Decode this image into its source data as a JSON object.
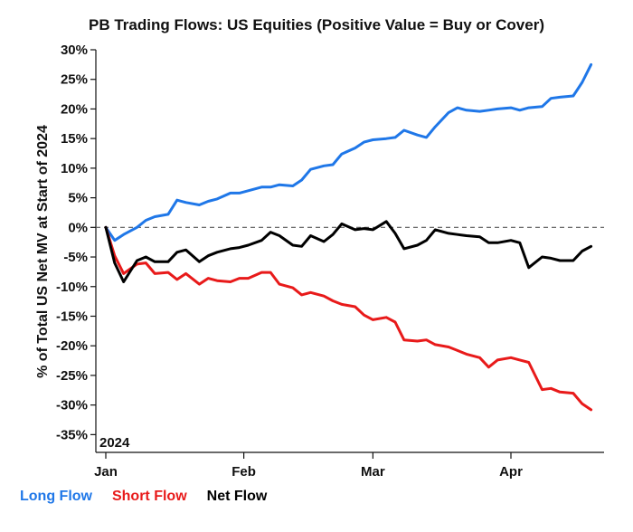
{
  "chart_data": {
    "type": "line",
    "title": "PB Trading Flows: US Equities (Positive Value = Buy or Cover)",
    "ylabel": "% of Total US Net MV at Start of 2024",
    "xlabel": "",
    "inset_label": "2024",
    "ylim": [
      -38,
      30
    ],
    "yticks": [
      30,
      25,
      20,
      15,
      10,
      5,
      0,
      -5,
      -10,
      -15,
      -20,
      -25,
      -30,
      -35
    ],
    "ytick_labels": [
      "30%",
      "25%",
      "20%",
      "15%",
      "10%",
      "5%",
      "0%",
      "-5%",
      "-10%",
      "-15%",
      "-20%",
      "-25%",
      "-30%",
      "-35%"
    ],
    "x_axis": {
      "start": "2024-01-01",
      "end": "2024-04-30",
      "units": "date"
    },
    "xticks": [
      "2024-01-01",
      "2024-02-01",
      "2024-03-01",
      "2024-04-01"
    ],
    "xtick_labels": [
      "Jan",
      "Feb",
      "Mar",
      "Apr"
    ],
    "zero_line": "dashed",
    "legend_placement": "bottom-left",
    "series": [
      {
        "name": "Long Flow",
        "color": "#1f77e8",
        "x": [
          "2024-01-01",
          "2024-01-03",
          "2024-01-05",
          "2024-01-08",
          "2024-01-10",
          "2024-01-12",
          "2024-01-15",
          "2024-01-17",
          "2024-01-19",
          "2024-01-22",
          "2024-01-24",
          "2024-01-26",
          "2024-01-29",
          "2024-01-31",
          "2024-02-02",
          "2024-02-05",
          "2024-02-07",
          "2024-02-09",
          "2024-02-12",
          "2024-02-14",
          "2024-02-16",
          "2024-02-19",
          "2024-02-21",
          "2024-02-23",
          "2024-02-26",
          "2024-02-28",
          "2024-03-01",
          "2024-03-04",
          "2024-03-06",
          "2024-03-08",
          "2024-03-11",
          "2024-03-13",
          "2024-03-15",
          "2024-03-18",
          "2024-03-20",
          "2024-03-22",
          "2024-03-25",
          "2024-03-27",
          "2024-03-29",
          "2024-04-01",
          "2024-04-03",
          "2024-04-05",
          "2024-04-08",
          "2024-04-10",
          "2024-04-12",
          "2024-04-15",
          "2024-04-17",
          "2024-04-19"
        ],
        "values": [
          0,
          -2.2,
          -1.2,
          0,
          1.2,
          1.8,
          2.2,
          4.6,
          4.2,
          3.8,
          4.4,
          4.8,
          5.8,
          5.8,
          6.2,
          6.8,
          6.8,
          7.2,
          7.0,
          8.0,
          9.8,
          10.4,
          10.6,
          12.4,
          13.4,
          14.4,
          14.8,
          15.0,
          15.2,
          16.4,
          15.6,
          15.2,
          17.0,
          19.4,
          20.2,
          19.8,
          19.6,
          19.8,
          20.0,
          20.2,
          19.8,
          20.2,
          20.4,
          21.8,
          22.0,
          22.2,
          24.5,
          27.5
        ]
      },
      {
        "name": "Short Flow",
        "color": "#e81a1a",
        "x": [
          "2024-01-01",
          "2024-01-03",
          "2024-01-05",
          "2024-01-08",
          "2024-01-10",
          "2024-01-12",
          "2024-01-15",
          "2024-01-17",
          "2024-01-19",
          "2024-01-22",
          "2024-01-24",
          "2024-01-26",
          "2024-01-29",
          "2024-01-31",
          "2024-02-02",
          "2024-02-05",
          "2024-02-07",
          "2024-02-09",
          "2024-02-12",
          "2024-02-14",
          "2024-02-16",
          "2024-02-19",
          "2024-02-21",
          "2024-02-23",
          "2024-02-26",
          "2024-02-28",
          "2024-03-01",
          "2024-03-04",
          "2024-03-06",
          "2024-03-08",
          "2024-03-11",
          "2024-03-13",
          "2024-03-15",
          "2024-03-18",
          "2024-03-20",
          "2024-03-22",
          "2024-03-25",
          "2024-03-27",
          "2024-03-29",
          "2024-04-01",
          "2024-04-03",
          "2024-04-05",
          "2024-04-08",
          "2024-04-10",
          "2024-04-12",
          "2024-04-15",
          "2024-04-17",
          "2024-04-19"
        ],
        "values": [
          0,
          -4.8,
          -7.8,
          -6.2,
          -6.0,
          -7.8,
          -7.6,
          -8.8,
          -7.8,
          -9.6,
          -8.6,
          -9.0,
          -9.2,
          -8.6,
          -8.6,
          -7.6,
          -7.6,
          -9.6,
          -10.2,
          -11.4,
          -11.0,
          -11.6,
          -12.4,
          -13.0,
          -13.4,
          -14.8,
          -15.6,
          -15.2,
          -16.0,
          -19.0,
          -19.2,
          -19.0,
          -19.8,
          -20.2,
          -20.8,
          -21.4,
          -22.0,
          -23.6,
          -22.4,
          -22.0,
          -22.4,
          -22.8,
          -27.4,
          -27.2,
          -27.8,
          -28.0,
          -29.8,
          -30.8
        ]
      },
      {
        "name": "Net Flow",
        "color": "#000000",
        "x": [
          "2024-01-01",
          "2024-01-03",
          "2024-01-05",
          "2024-01-08",
          "2024-01-10",
          "2024-01-12",
          "2024-01-15",
          "2024-01-17",
          "2024-01-19",
          "2024-01-22",
          "2024-01-24",
          "2024-01-26",
          "2024-01-29",
          "2024-01-31",
          "2024-02-02",
          "2024-02-05",
          "2024-02-07",
          "2024-02-09",
          "2024-02-12",
          "2024-02-14",
          "2024-02-16",
          "2024-02-19",
          "2024-02-21",
          "2024-02-23",
          "2024-02-26",
          "2024-02-28",
          "2024-03-01",
          "2024-03-04",
          "2024-03-06",
          "2024-03-08",
          "2024-03-11",
          "2024-03-13",
          "2024-03-15",
          "2024-03-18",
          "2024-03-20",
          "2024-03-22",
          "2024-03-25",
          "2024-03-27",
          "2024-03-29",
          "2024-04-01",
          "2024-04-03",
          "2024-04-05",
          "2024-04-08",
          "2024-04-10",
          "2024-04-12",
          "2024-04-15",
          "2024-04-17",
          "2024-04-19"
        ],
        "values": [
          0,
          -6.0,
          -9.2,
          -5.6,
          -5.0,
          -5.8,
          -5.8,
          -4.2,
          -3.8,
          -5.8,
          -4.8,
          -4.2,
          -3.6,
          -3.4,
          -3.0,
          -2.2,
          -0.8,
          -1.4,
          -3.0,
          -3.2,
          -1.4,
          -2.4,
          -1.2,
          0.6,
          -0.4,
          -0.2,
          -0.4,
          1.0,
          -1.0,
          -3.6,
          -3.0,
          -2.2,
          -0.4,
          -1.0,
          -1.2,
          -1.4,
          -1.6,
          -2.6,
          -2.6,
          -2.2,
          -2.6,
          -6.8,
          -5.0,
          -5.2,
          -5.6,
          -5.6,
          -4.0,
          -3.2
        ]
      }
    ]
  }
}
